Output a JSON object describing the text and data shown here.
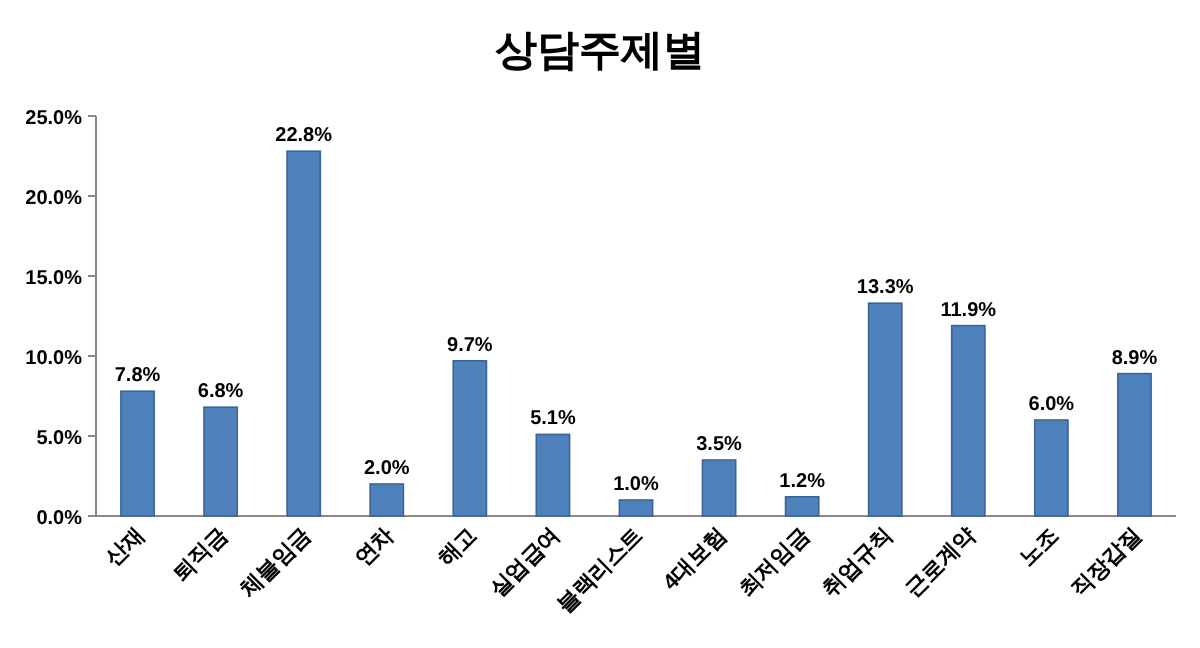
{
  "chart_data": {
    "type": "bar",
    "title": "상담주제별",
    "categories": [
      "산재",
      "퇴직금",
      "체불임금",
      "연차",
      "해고",
      "실업급여",
      "블랙리스트",
      "4대보험",
      "최저임금",
      "취업규칙",
      "근로계약",
      "노조",
      "직장갑질"
    ],
    "values": [
      7.8,
      6.8,
      22.8,
      2.0,
      9.7,
      5.1,
      1.0,
      3.5,
      1.2,
      13.3,
      11.9,
      6.0,
      8.9
    ],
    "value_labels": [
      "7.8%",
      "6.8%",
      "22.8%",
      "2.0%",
      "9.7%",
      "5.1%",
      "1.0%",
      "3.5%",
      "1.2%",
      "13.3%",
      "11.9%",
      "6.0%",
      "8.9%"
    ],
    "color": "#4f81bd",
    "ylim": [
      0,
      25
    ],
    "yticks": [
      {
        "value": 0,
        "label": "0.0%"
      },
      {
        "value": 5,
        "label": "5.0%"
      },
      {
        "value": 10,
        "label": "10.0%"
      },
      {
        "value": 15,
        "label": "15.0%"
      },
      {
        "value": 20,
        "label": "20.0%"
      },
      {
        "value": 25,
        "label": "25.0%"
      }
    ]
  }
}
